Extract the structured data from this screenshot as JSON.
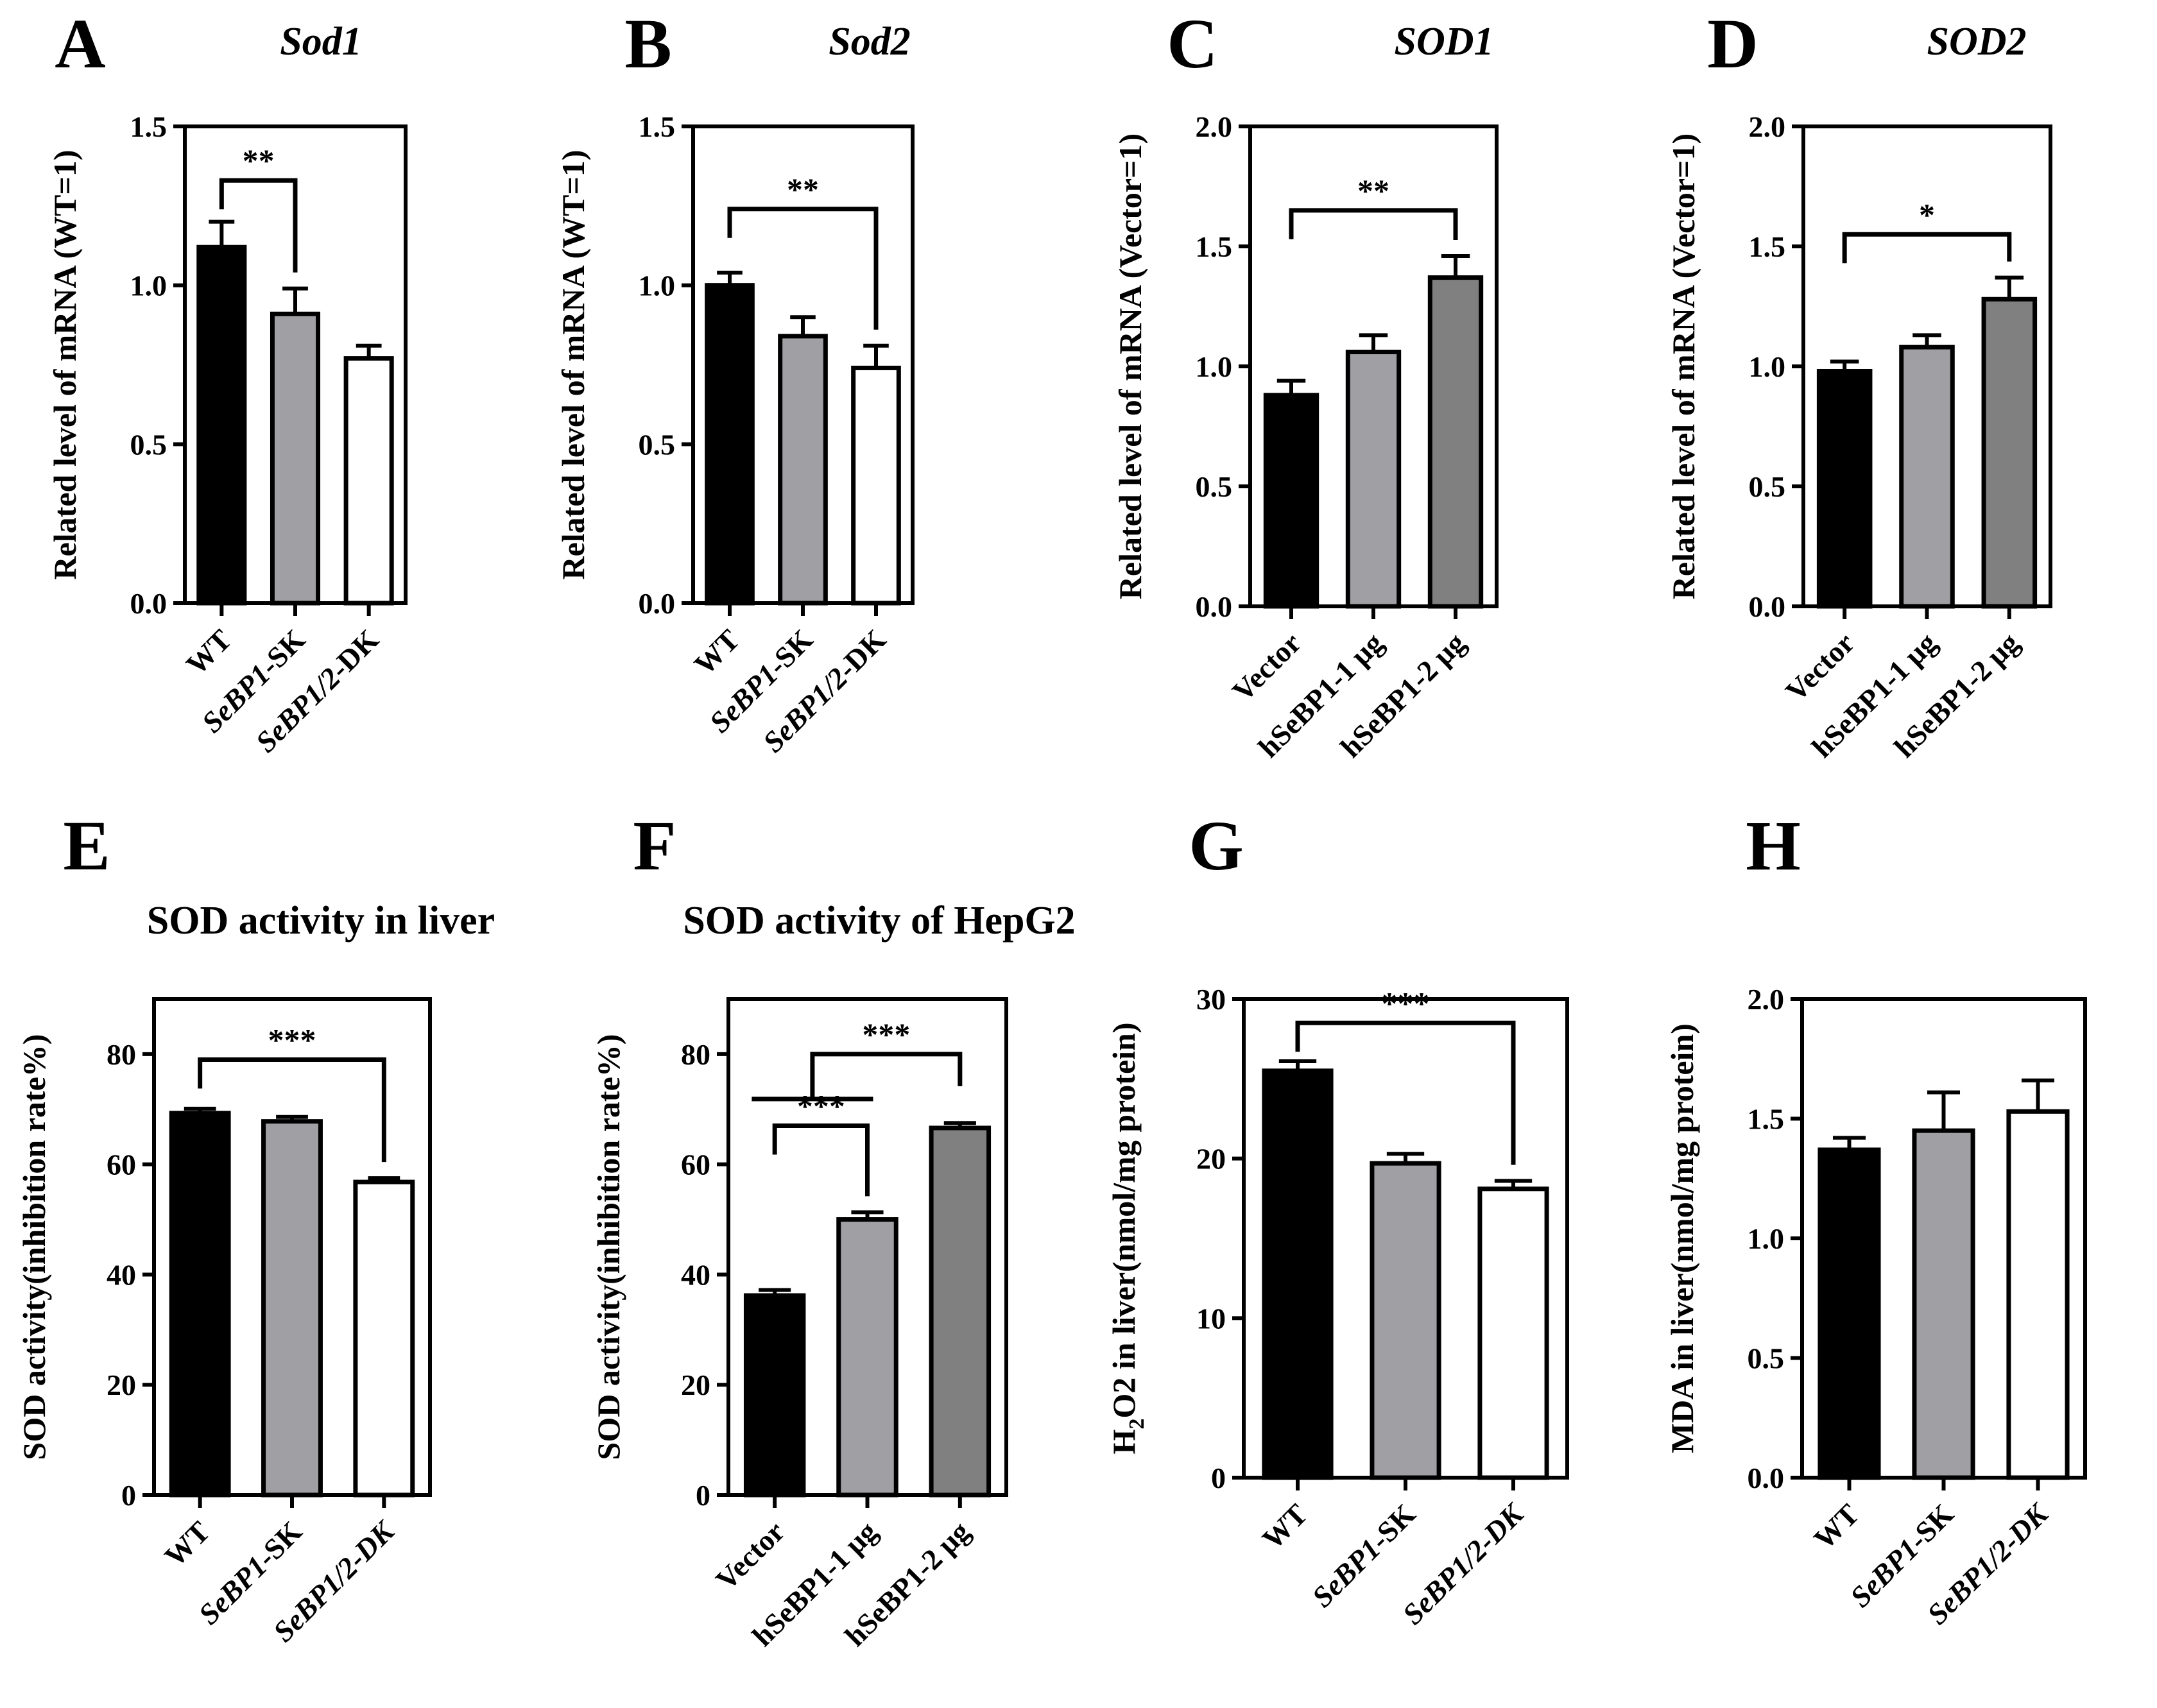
{
  "chart_data": [
    {
      "panel": "A",
      "type": "bar",
      "title": "Sod1",
      "title_italic": true,
      "ylabel": "Related level of mRNA (WT=1)",
      "ylim": [
        0,
        1.5
      ],
      "yticks": [
        "0.0",
        "0.5",
        "1.0",
        "1.5"
      ],
      "categories": [
        "WT",
        "SeBP1-SK",
        "SeBP1/2-DK"
      ],
      "category_italic_parts": [
        "",
        "SeBP1",
        "SeBP1/2"
      ],
      "values": [
        1.12,
        0.91,
        0.77
      ],
      "errors": [
        0.08,
        0.08,
        0.04
      ],
      "bar_colors": [
        "#000000",
        "#a0a0a4",
        "#ffffff"
      ],
      "significance": [
        {
          "from": 0,
          "to": 1,
          "label": "**",
          "y": 1.33
        }
      ]
    },
    {
      "panel": "B",
      "type": "bar",
      "title": "Sod2",
      "title_italic": true,
      "ylabel": "Related level of mRNA (WT=1)",
      "ylim": [
        0,
        1.5
      ],
      "yticks": [
        "0.0",
        "0.5",
        "1.0",
        "1.5"
      ],
      "categories": [
        "WT",
        "SeBP1-SK",
        "SeBP1/2-DK"
      ],
      "category_italic_parts": [
        "",
        "SeBP1",
        "SeBP1/2"
      ],
      "values": [
        1.0,
        0.84,
        0.74
      ],
      "errors": [
        0.04,
        0.06,
        0.07
      ],
      "bar_colors": [
        "#000000",
        "#a0a0a4",
        "#ffffff"
      ],
      "significance": [
        {
          "from": 0,
          "to": 2,
          "label": "**",
          "y": 1.24
        }
      ]
    },
    {
      "panel": "C",
      "type": "bar",
      "title": "SOD1",
      "title_italic": true,
      "ylabel": "Related level of mRNA (Vector=1)",
      "ylim": [
        0,
        2.0
      ],
      "yticks": [
        "0.0",
        "0.5",
        "1.0",
        "1.5",
        "2.0"
      ],
      "categories": [
        "Vector",
        "hSeBP1-1 μg",
        "hSeBP1-2 μg"
      ],
      "category_italic_parts": [
        "",
        "",
        ""
      ],
      "values": [
        0.88,
        1.06,
        1.37
      ],
      "errors": [
        0.06,
        0.07,
        0.09
      ],
      "bar_colors": [
        "#000000",
        "#a0a0a4",
        "#808080"
      ],
      "significance": [
        {
          "from": 0,
          "to": 2,
          "label": "**",
          "y": 1.65
        }
      ]
    },
    {
      "panel": "D",
      "type": "bar",
      "title": "SOD2",
      "title_italic": true,
      "ylabel": "Related level of mRNA (Vector=1)",
      "ylim": [
        0,
        2.0
      ],
      "yticks": [
        "0.0",
        "0.5",
        "1.0",
        "1.5",
        "2.0"
      ],
      "categories": [
        "Vector",
        "hSeBP1-1 μg",
        "hSeBP1-2 μg"
      ],
      "category_italic_parts": [
        "",
        "",
        ""
      ],
      "values": [
        0.98,
        1.08,
        1.28
      ],
      "errors": [
        0.04,
        0.05,
        0.09
      ],
      "bar_colors": [
        "#000000",
        "#a0a0a4",
        "#808080"
      ],
      "significance": [
        {
          "from": 0,
          "to": 2,
          "label": "*",
          "y": 1.55
        }
      ]
    },
    {
      "panel": "E",
      "type": "bar",
      "title": "SOD activity in liver",
      "title_italic": false,
      "ylabel": "SOD activity(inhibition rate%)",
      "ylim": [
        0,
        90
      ],
      "yticks": [
        "0",
        "20",
        "40",
        "60",
        "80"
      ],
      "categories": [
        "WT",
        "SeBP1-SK",
        "SeBP1/2-DK"
      ],
      "category_italic_parts": [
        "",
        "SeBP1",
        "SeBP1/2-DK"
      ],
      "values": [
        69.3,
        67.8,
        56.8
      ],
      "errors": [
        0.8,
        0.8,
        0.7
      ],
      "bar_colors": [
        "#000000",
        "#a0a0a4",
        "#ffffff"
      ],
      "significance": [
        {
          "from": 0,
          "to": 2,
          "label": "***",
          "y": 79
        }
      ]
    },
    {
      "panel": "F",
      "type": "bar",
      "title": "SOD activity of HepG2",
      "title_italic": false,
      "ylabel": "SOD activity(inhibition rate%)",
      "ylim": [
        0,
        90
      ],
      "yticks": [
        "0",
        "20",
        "40",
        "60",
        "80"
      ],
      "categories": [
        "Vector",
        "hSeBP1-1 μg",
        "hSeBP1-2 μg"
      ],
      "category_italic_parts": [
        "",
        "",
        ""
      ],
      "values": [
        36.2,
        50.0,
        66.6
      ],
      "errors": [
        1.0,
        1.3,
        0.9
      ],
      "bar_colors": [
        "#000000",
        "#a0a0a4",
        "#808080"
      ],
      "significance": [
        {
          "from": 0,
          "to": 1,
          "label": "***",
          "y": 67
        },
        {
          "from_group": [
            0,
            1
          ],
          "to": 2,
          "label": "***",
          "y": 80
        }
      ]
    },
    {
      "panel": "G",
      "type": "bar",
      "title": "",
      "title_italic": false,
      "ylabel": "H2O2 in liver(nmol/mg protein)",
      "ylabel_subscript": "2",
      "ylim": [
        0,
        30
      ],
      "yticks": [
        "0",
        "10",
        "20",
        "30"
      ],
      "categories": [
        "WT",
        "SeBP1-SK",
        "SeBP1/2-DK"
      ],
      "category_italic_parts": [
        "",
        "SeBP1",
        "SeBP1/2-DK"
      ],
      "values": [
        25.5,
        19.7,
        18.1
      ],
      "errors": [
        0.6,
        0.6,
        0.5
      ],
      "bar_colors": [
        "#000000",
        "#a0a0a4",
        "#ffffff"
      ],
      "significance": [
        {
          "from": 0,
          "to": 2,
          "label": "***",
          "y": 28.5
        }
      ]
    },
    {
      "panel": "H",
      "type": "bar",
      "title": "",
      "title_italic": false,
      "ylabel": "MDA in liver(nmol/mg protein)",
      "ylim": [
        0,
        2.0
      ],
      "yticks": [
        "0.0",
        "0.5",
        "1.0",
        "1.5",
        "2.0"
      ],
      "categories": [
        "WT",
        "SeBP1-SK",
        "SeBP1/2-DK"
      ],
      "category_italic_parts": [
        "",
        "SeBP1",
        "SeBP1/2-DK"
      ],
      "values": [
        1.37,
        1.45,
        1.53
      ],
      "errors": [
        0.05,
        0.16,
        0.13
      ],
      "bar_colors": [
        "#000000",
        "#a0a0a4",
        "#ffffff"
      ],
      "significance": []
    }
  ]
}
